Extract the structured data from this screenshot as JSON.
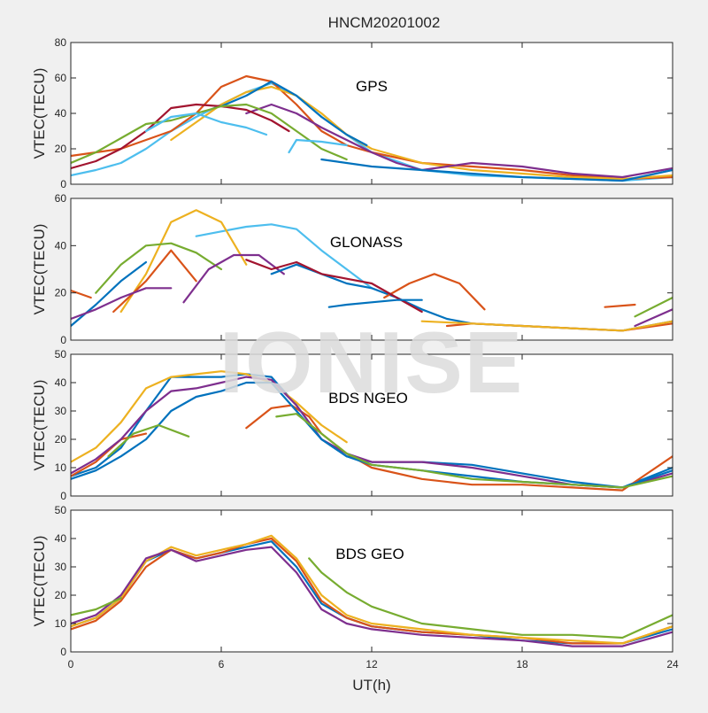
{
  "figure": {
    "title": "HNCM20201002",
    "xlabel": "UT(h)",
    "watermark": "IONISE",
    "background_color": "#f0f0f0",
    "axes_color": "#ffffff",
    "watermark_color": "#dcdcdc"
  },
  "series_colors": [
    "#0072bd",
    "#d95319",
    "#edb120",
    "#7e2f8e",
    "#77ac30",
    "#4dbeee",
    "#a2142f"
  ],
  "chart_data": [
    {
      "type": "line",
      "label": "GPS",
      "ylabel": "VTEC(TECU)",
      "xlim": [
        0,
        24
      ],
      "ylim": [
        0,
        80
      ],
      "xticks": [
        0,
        6,
        12,
        18,
        24
      ],
      "yticks": [
        0,
        20,
        40,
        60,
        80
      ],
      "show_xtick_labels": false,
      "grid": false,
      "series": [
        {
          "color_index": 5,
          "x": [
            0,
            1,
            2,
            3,
            4,
            5,
            6,
            7,
            8,
            9,
            10,
            12,
            14,
            16,
            18,
            20,
            22,
            24
          ],
          "y": [
            5,
            8,
            12,
            20,
            30,
            38,
            45,
            52,
            57,
            50,
            38,
            18,
            8,
            5,
            4,
            3,
            2,
            4
          ]
        },
        {
          "color_index": 1,
          "x": [
            0,
            2,
            4,
            5,
            6,
            7,
            8,
            9,
            10,
            11,
            12,
            14,
            16,
            18,
            20,
            22,
            24
          ],
          "y": [
            16,
            20,
            30,
            40,
            55,
            61,
            58,
            45,
            30,
            22,
            18,
            12,
            10,
            8,
            5,
            3,
            4
          ]
        },
        {
          "color_index": 2,
          "x": [
            4,
            5,
            6,
            7,
            8,
            9,
            10,
            11,
            12,
            14,
            16,
            18,
            20,
            22,
            24
          ],
          "y": [
            25,
            35,
            45,
            52,
            55,
            50,
            40,
            28,
            20,
            12,
            8,
            6,
            4,
            3,
            5
          ]
        },
        {
          "color_index": 0,
          "x": [
            6,
            7,
            8,
            9,
            10,
            11,
            11.8
          ],
          "y": [
            44,
            50,
            58,
            50,
            38,
            28,
            22
          ]
        },
        {
          "color_index": 3,
          "x": [
            7,
            8,
            9,
            10,
            11,
            12,
            13,
            14,
            15,
            16,
            18,
            20,
            22,
            24
          ],
          "y": [
            40,
            45,
            40,
            32,
            25,
            18,
            12,
            8,
            10,
            12,
            10,
            6,
            4,
            9
          ]
        },
        {
          "color_index": 6,
          "x": [
            0,
            1,
            2,
            3,
            4,
            5,
            6,
            7,
            8,
            8.7
          ],
          "y": [
            9,
            13,
            20,
            30,
            43,
            45,
            44,
            42,
            36,
            30
          ]
        },
        {
          "color_index": 4,
          "x": [
            0,
            1,
            2,
            3,
            4,
            5,
            6,
            7,
            8,
            9,
            10,
            11
          ],
          "y": [
            12,
            18,
            26,
            34,
            36,
            40,
            44,
            45,
            40,
            30,
            20,
            14
          ]
        },
        {
          "color_index": 5,
          "x": [
            3,
            4,
            5,
            6,
            7,
            7.8
          ],
          "y": [
            30,
            38,
            40,
            35,
            32,
            28
          ]
        },
        {
          "color_index": 5,
          "x": [
            8.7,
            9,
            10,
            11
          ],
          "y": [
            18,
            25,
            24,
            22
          ]
        },
        {
          "color_index": 0,
          "x": [
            10,
            12,
            14,
            16,
            18,
            20,
            22,
            24
          ],
          "y": [
            14,
            10,
            8,
            6,
            4,
            3,
            2,
            8
          ]
        }
      ]
    },
    {
      "type": "line",
      "label": "GLONASS",
      "ylabel": "VTEC(TECU)",
      "xlim": [
        0,
        24
      ],
      "ylim": [
        0,
        60
      ],
      "xticks": [
        0,
        6,
        12,
        18,
        24
      ],
      "yticks": [
        0,
        20,
        40,
        60
      ],
      "show_xtick_labels": false,
      "grid": false,
      "series": [
        {
          "color_index": 5,
          "x": [
            5,
            6,
            7,
            8,
            9,
            10,
            11,
            12
          ],
          "y": [
            44,
            46,
            48,
            49,
            47,
            38,
            30,
            22
          ]
        },
        {
          "color_index": 2,
          "x": [
            2,
            3,
            4,
            5,
            6,
            7
          ],
          "y": [
            12,
            28,
            50,
            55,
            50,
            32
          ]
        },
        {
          "color_index": 4,
          "x": [
            1,
            2,
            3,
            4,
            5,
            6
          ],
          "y": [
            20,
            32,
            40,
            41,
            37,
            30
          ]
        },
        {
          "color_index": 1,
          "x": [
            0,
            0.8
          ],
          "y": [
            21,
            18
          ]
        },
        {
          "color_index": 1,
          "x": [
            1.7,
            3,
            4,
            5
          ],
          "y": [
            12,
            25,
            38,
            25
          ]
        },
        {
          "color_index": 3,
          "x": [
            4.5,
            5.5,
            6.5,
            7.5,
            8.5
          ],
          "y": [
            16,
            30,
            36,
            36,
            28
          ]
        },
        {
          "color_index": 0,
          "x": [
            8,
            9,
            10,
            11,
            12,
            13,
            14,
            15,
            16,
            18,
            20,
            22,
            24
          ],
          "y": [
            28,
            32,
            28,
            24,
            22,
            18,
            13,
            9,
            7,
            6,
            5,
            4,
            8
          ]
        },
        {
          "color_index": 1,
          "x": [
            12.5,
            13.5,
            14.5,
            15.5,
            16.5
          ],
          "y": [
            18,
            24,
            28,
            24,
            13
          ]
        },
        {
          "color_index": 6,
          "x": [
            7,
            8,
            9,
            10,
            11,
            12,
            13,
            14
          ],
          "y": [
            34,
            30,
            33,
            28,
            26,
            24,
            18,
            12
          ]
        },
        {
          "color_index": 0,
          "x": [
            0,
            1,
            2,
            3
          ],
          "y": [
            6,
            15,
            25,
            33
          ]
        },
        {
          "color_index": 3,
          "x": [
            0,
            1,
            2,
            3,
            4
          ],
          "y": [
            9,
            13,
            18,
            22,
            22
          ]
        },
        {
          "color_index": 0,
          "x": [
            10.3,
            11,
            12,
            13,
            14
          ],
          "y": [
            14,
            15,
            16,
            17,
            17
          ]
        },
        {
          "color_index": 1,
          "x": [
            15,
            16,
            18,
            20,
            22,
            24
          ],
          "y": [
            6,
            7,
            6,
            5,
            4,
            7
          ]
        },
        {
          "color_index": 2,
          "x": [
            14,
            16,
            18,
            20,
            22,
            24
          ],
          "y": [
            8,
            7,
            6,
            5,
            4,
            8
          ]
        },
        {
          "color_index": 1,
          "x": [
            21.3,
            22.5
          ],
          "y": [
            14,
            15
          ]
        },
        {
          "color_index": 3,
          "x": [
            22.5,
            24
          ],
          "y": [
            6,
            13
          ]
        },
        {
          "color_index": 4,
          "x": [
            22.5,
            24
          ],
          "y": [
            10,
            18
          ]
        }
      ]
    },
    {
      "type": "line",
      "label": "BDS NGEO",
      "ylabel": "VTEC(TECU)",
      "xlim": [
        0,
        24
      ],
      "ylim": [
        0,
        50
      ],
      "xticks": [
        0,
        6,
        12,
        18,
        24
      ],
      "yticks": [
        0,
        10,
        20,
        30,
        40,
        50
      ],
      "show_xtick_labels": false,
      "grid": false,
      "series": [
        {
          "color_index": 0,
          "x": [
            0,
            1,
            2,
            3,
            4,
            5,
            6,
            7,
            8,
            9,
            10,
            11,
            12,
            14,
            16,
            18,
            20,
            22,
            24
          ],
          "y": [
            7,
            10,
            17,
            30,
            42,
            42,
            42,
            43,
            42,
            32,
            20,
            14,
            12,
            12,
            11,
            8,
            5,
            3,
            10
          ]
        },
        {
          "color_index": 1,
          "x": [
            0,
            1,
            2,
            3
          ],
          "y": [
            7,
            12,
            20,
            22
          ]
        },
        {
          "color_index": 1,
          "x": [
            7,
            8,
            8.8,
            9.5,
            10,
            11,
            12,
            14,
            16,
            18,
            20,
            22,
            24
          ],
          "y": [
            24,
            31,
            32,
            28,
            22,
            15,
            10,
            6,
            4,
            4,
            3,
            2,
            14
          ]
        },
        {
          "color_index": 2,
          "x": [
            0,
            1,
            2,
            3,
            4,
            5,
            6,
            7,
            8,
            9,
            10,
            11
          ],
          "y": [
            12,
            17,
            26,
            38,
            42,
            43,
            44,
            43,
            40,
            33,
            25,
            19
          ]
        },
        {
          "color_index": 3,
          "x": [
            0,
            1,
            2,
            3,
            4,
            5,
            6,
            7,
            8,
            9,
            10,
            11,
            12,
            14,
            16,
            18,
            20,
            22,
            24
          ],
          "y": [
            8,
            13,
            20,
            30,
            37,
            38,
            40,
            42,
            41,
            32,
            20,
            15,
            12,
            12,
            10,
            7,
            4,
            3,
            8
          ]
        },
        {
          "color_index": 0,
          "x": [
            0,
            1,
            2,
            3,
            4,
            5,
            6,
            7,
            8,
            9,
            10,
            11,
            12,
            14,
            16,
            18,
            20,
            22,
            24
          ],
          "y": [
            6,
            9,
            14,
            20,
            30,
            35,
            37,
            40,
            40,
            30,
            20,
            14,
            11,
            9,
            7,
            5,
            4,
            3,
            9
          ]
        },
        {
          "color_index": 4,
          "x": [
            1.5,
            2.5,
            3.5,
            4.7
          ],
          "y": [
            14,
            22,
            25,
            21
          ]
        },
        {
          "color_index": 4,
          "x": [
            8.2,
            9,
            10,
            11,
            12,
            14,
            16,
            18,
            20,
            22,
            24
          ],
          "y": [
            28,
            29,
            22,
            15,
            11,
            9,
            6,
            5,
            4,
            3,
            7
          ]
        }
      ]
    },
    {
      "type": "line",
      "label": "BDS GEO",
      "ylabel": "VTEC(TECU)",
      "xlabel": "UT(h)",
      "xlim": [
        0,
        24
      ],
      "ylim": [
        0,
        50
      ],
      "xticks": [
        0,
        6,
        12,
        18,
        24
      ],
      "yticks": [
        0,
        10,
        20,
        30,
        40,
        50
      ],
      "show_xtick_labels": true,
      "grid": false,
      "series": [
        {
          "color_index": 0,
          "x": [
            0,
            1,
            2,
            3,
            4,
            5,
            6,
            7,
            8,
            9,
            10,
            11,
            12,
            14,
            16,
            18,
            20,
            22,
            24
          ],
          "y": [
            9,
            12,
            19,
            32,
            36,
            33,
            35,
            37,
            39,
            30,
            17,
            12,
            9,
            7,
            6,
            4,
            3,
            3,
            8
          ]
        },
        {
          "color_index": 1,
          "x": [
            0,
            1,
            2,
            3,
            4,
            5,
            6,
            7,
            8,
            9,
            10,
            11,
            12,
            14,
            16,
            18,
            20,
            22,
            24
          ],
          "y": [
            8,
            11,
            18,
            30,
            36,
            33,
            35,
            38,
            40,
            32,
            18,
            12,
            9,
            7,
            6,
            5,
            3,
            3,
            9
          ]
        },
        {
          "color_index": 2,
          "x": [
            0,
            1,
            2,
            3,
            4,
            5,
            6,
            7,
            8,
            9,
            10,
            11,
            12,
            14,
            16,
            18,
            20,
            22,
            24
          ],
          "y": [
            9,
            12,
            19,
            32,
            37,
            34,
            36,
            38,
            41,
            33,
            20,
            13,
            10,
            8,
            6,
            5,
            4,
            3,
            9
          ]
        },
        {
          "color_index": 3,
          "x": [
            0,
            1,
            2,
            3,
            4,
            5,
            6,
            7,
            8,
            9,
            10,
            11,
            12,
            14,
            16,
            18,
            20,
            22,
            24
          ],
          "y": [
            10,
            13,
            20,
            33,
            36,
            32,
            34,
            36,
            37,
            28,
            15,
            10,
            8,
            6,
            5,
            4,
            2,
            2,
            7
          ]
        },
        {
          "color_index": 4,
          "x": [
            0,
            1,
            2
          ],
          "y": [
            13,
            15,
            19
          ]
        },
        {
          "color_index": 4,
          "x": [
            9.5,
            10,
            11,
            12,
            14,
            16,
            18,
            20,
            22,
            24
          ],
          "y": [
            33,
            28,
            21,
            16,
            10,
            8,
            6,
            6,
            5,
            13
          ]
        }
      ]
    }
  ]
}
